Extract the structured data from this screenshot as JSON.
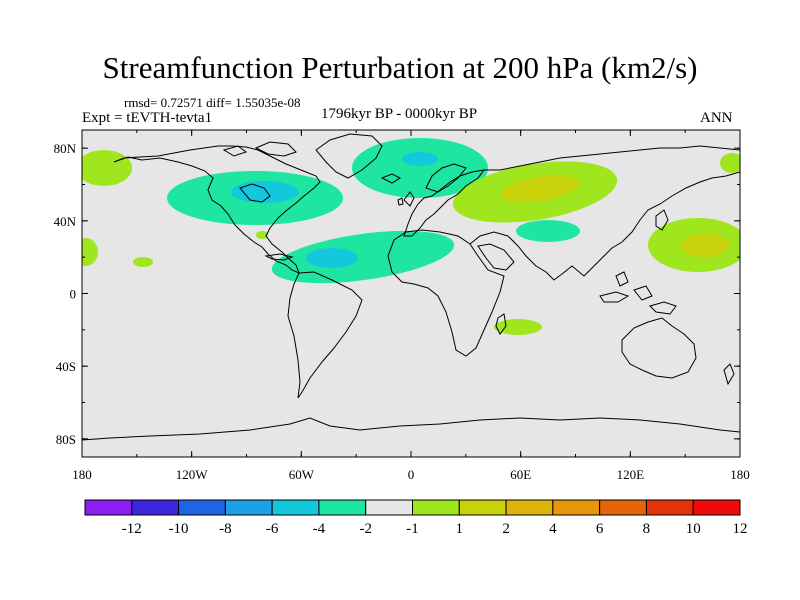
{
  "title": "Streamfunction Perturbation at 200 hPa (km2/s)",
  "stats_text": "rmsd= 0.72571 diff= 1.55035e-08",
  "experiment_text": "Expt = tEVTH-tevta1",
  "period_text": "1796kyr BP - 0000kyr BP",
  "season_text": "ANN",
  "map": {
    "background_color": "#e6e6e6",
    "lon_tick_labels": [
      "180",
      "120W",
      "60W",
      "0",
      "60E",
      "120E",
      "180"
    ],
    "lat_tick_labels": [
      "80N",
      "40N",
      "0",
      "40S",
      "80S"
    ]
  },
  "colorbar": {
    "colors": [
      "#8c1ef0",
      "#3c28dc",
      "#1e64e6",
      "#1ea0e6",
      "#14c8dc",
      "#1ee6a0",
      "#e6e6e6",
      "#a0e61e",
      "#c8d20a",
      "#dcb40a",
      "#e6960a",
      "#e6640a",
      "#e6320a",
      "#f00a0a"
    ],
    "labels": [
      "-12",
      "-10",
      "-8",
      "-6",
      "-4",
      "-2",
      "-1",
      "1",
      "2",
      "4",
      "6",
      "8",
      "10",
      "12"
    ],
    "levels": [
      -12,
      -10,
      -8,
      -6,
      -4,
      -2,
      -1,
      1,
      2,
      4,
      6,
      8,
      10,
      12
    ]
  }
}
